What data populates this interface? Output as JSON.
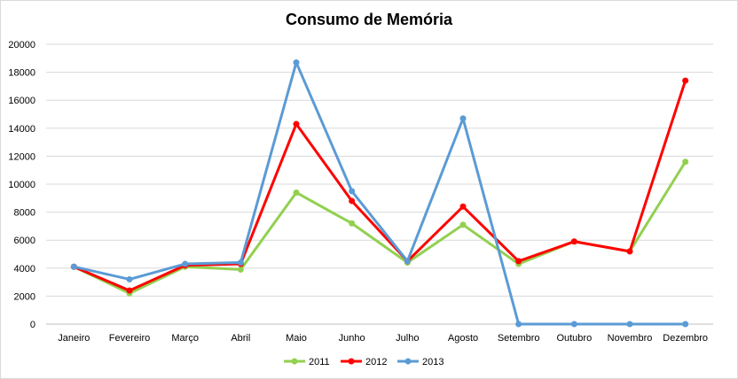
{
  "chart_data": {
    "type": "line",
    "title": "Consumo de Memória",
    "xlabel": "",
    "ylabel": "",
    "categories": [
      "Janeiro",
      "Fevereiro",
      "Março",
      "Abril",
      "Maio",
      "Junho",
      "Julho",
      "Agosto",
      "Setembro",
      "Outubro",
      "Novembro",
      "Dezembro"
    ],
    "ylim": [
      0,
      20000
    ],
    "yticks": [
      0,
      2000,
      4000,
      6000,
      8000,
      10000,
      12000,
      14000,
      16000,
      18000,
      20000
    ],
    "grid": true,
    "legend_position": "bottom",
    "series": [
      {
        "name": "2011",
        "color": "#92d050",
        "values": [
          4100,
          2200,
          4100,
          3900,
          9400,
          7200,
          4400,
          7100,
          4300,
          5900,
          5200,
          11600
        ]
      },
      {
        "name": "2012",
        "color": "#ff0000",
        "values": [
          4100,
          2400,
          4200,
          4300,
          14300,
          8800,
          4500,
          8400,
          4500,
          5900,
          5200,
          17400
        ]
      },
      {
        "name": "2013",
        "color": "#5b9bd5",
        "values": [
          4100,
          3200,
          4300,
          4400,
          18700,
          9500,
          4500,
          14700,
          0,
          0,
          0,
          0
        ]
      }
    ]
  }
}
